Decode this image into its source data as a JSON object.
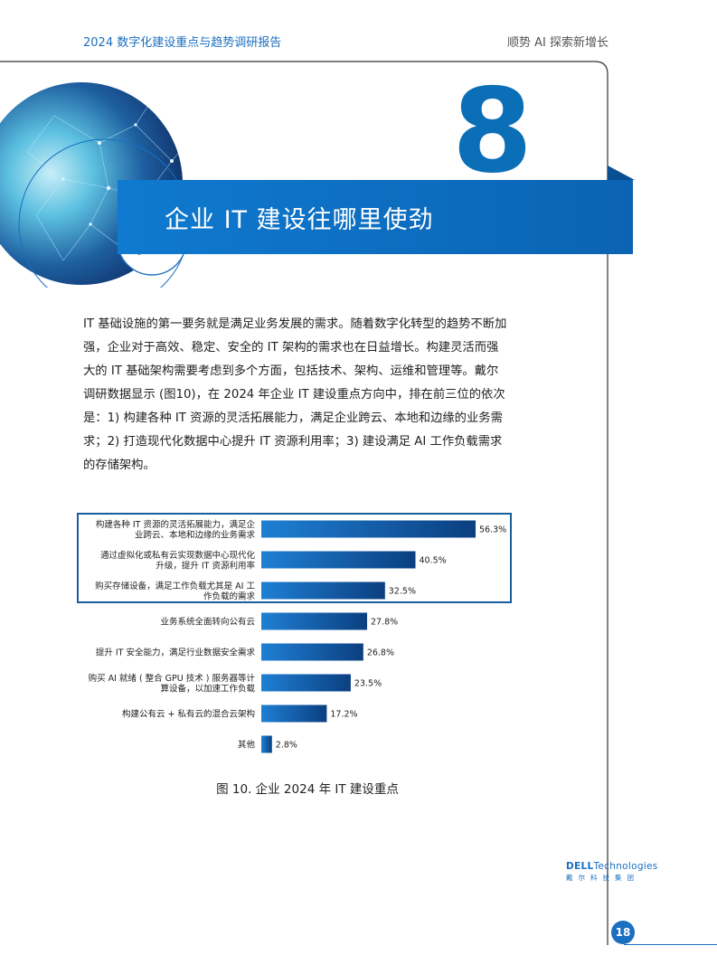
{
  "header": {
    "left_title": "2024 数字化建设重点与趋势调研报告",
    "right_title": "顺势 AI 探索新增长"
  },
  "section": {
    "number": "8",
    "title": "企业 IT 建设往哪里使劲",
    "icon": "cubes-network-icon"
  },
  "body": {
    "paragraph": "IT 基础设施的第一要务就是满足业务发展的需求。随着数字化转型的趋势不断加强，企业对于高效、稳定、安全的 IT 架构的需求也在日益增长。构建灵活而强大的 IT 基础架构需要考虑到多个方面，包括技术、架构、运维和管理等。戴尔调研数据显示 (图10)，在 2024 年企业 IT 建设重点方向中，排在前三位的依次是：1) 构建各种 IT 资源的灵活拓展能力，满足企业跨云、本地和边缘的业务需求；2) 打造现代化数据中心提升 IT 资源利用率；3) 建设满足 AI 工作负载需求的存储架构。"
  },
  "chart_data": {
    "type": "bar",
    "orientation": "horizontal",
    "categories": [
      [
        "构建各种 IT 资源的灵活拓展能力，满足企",
        "业跨云、本地和边缘的业务需求"
      ],
      [
        "通过虚拟化或私有云实现数据中心现代化",
        "升级，提升 IT 资源利用率"
      ],
      [
        "购买存储设备，满足工作负载尤其是 AI 工",
        "作负载的需求"
      ],
      [
        "业务系统全面转向公有云"
      ],
      [
        "提升 IT 安全能力，满足行业数据安全需求"
      ],
      [
        "购买 AI 就绪 ( 整合 GPU 技术 ) 服务器等计",
        "算设备，以加速工作负载"
      ],
      [
        "构建公有云 + 私有云的混合云架构"
      ],
      [
        "其他"
      ]
    ],
    "values": [
      56.3,
      40.5,
      32.5,
      27.8,
      26.8,
      23.5,
      17.2,
      2.8
    ],
    "value_labels": [
      "56.3%",
      "40.5%",
      "32.5%",
      "27.8%",
      "26.8%",
      "23.5%",
      "17.2%",
      "2.8%"
    ],
    "xlim": [
      0,
      56.3
    ],
    "highlighted_top": 3,
    "colors": {
      "bar_start": "#1f7fd4",
      "bar_end": "#0b3f80",
      "highlight_border": "#1a5e9e"
    },
    "grid": false
  },
  "caption": "图 10. 企业 2024 年 IT 建设重点",
  "brand": {
    "logo_main": "DELL",
    "logo_tech": "Technologies",
    "logo_sub": "戴尔科技集团"
  },
  "page_number": "18",
  "theme": {
    "primary": "#1a6fc0",
    "banner": "#0f7ad0",
    "dark": "#0a4f92"
  }
}
